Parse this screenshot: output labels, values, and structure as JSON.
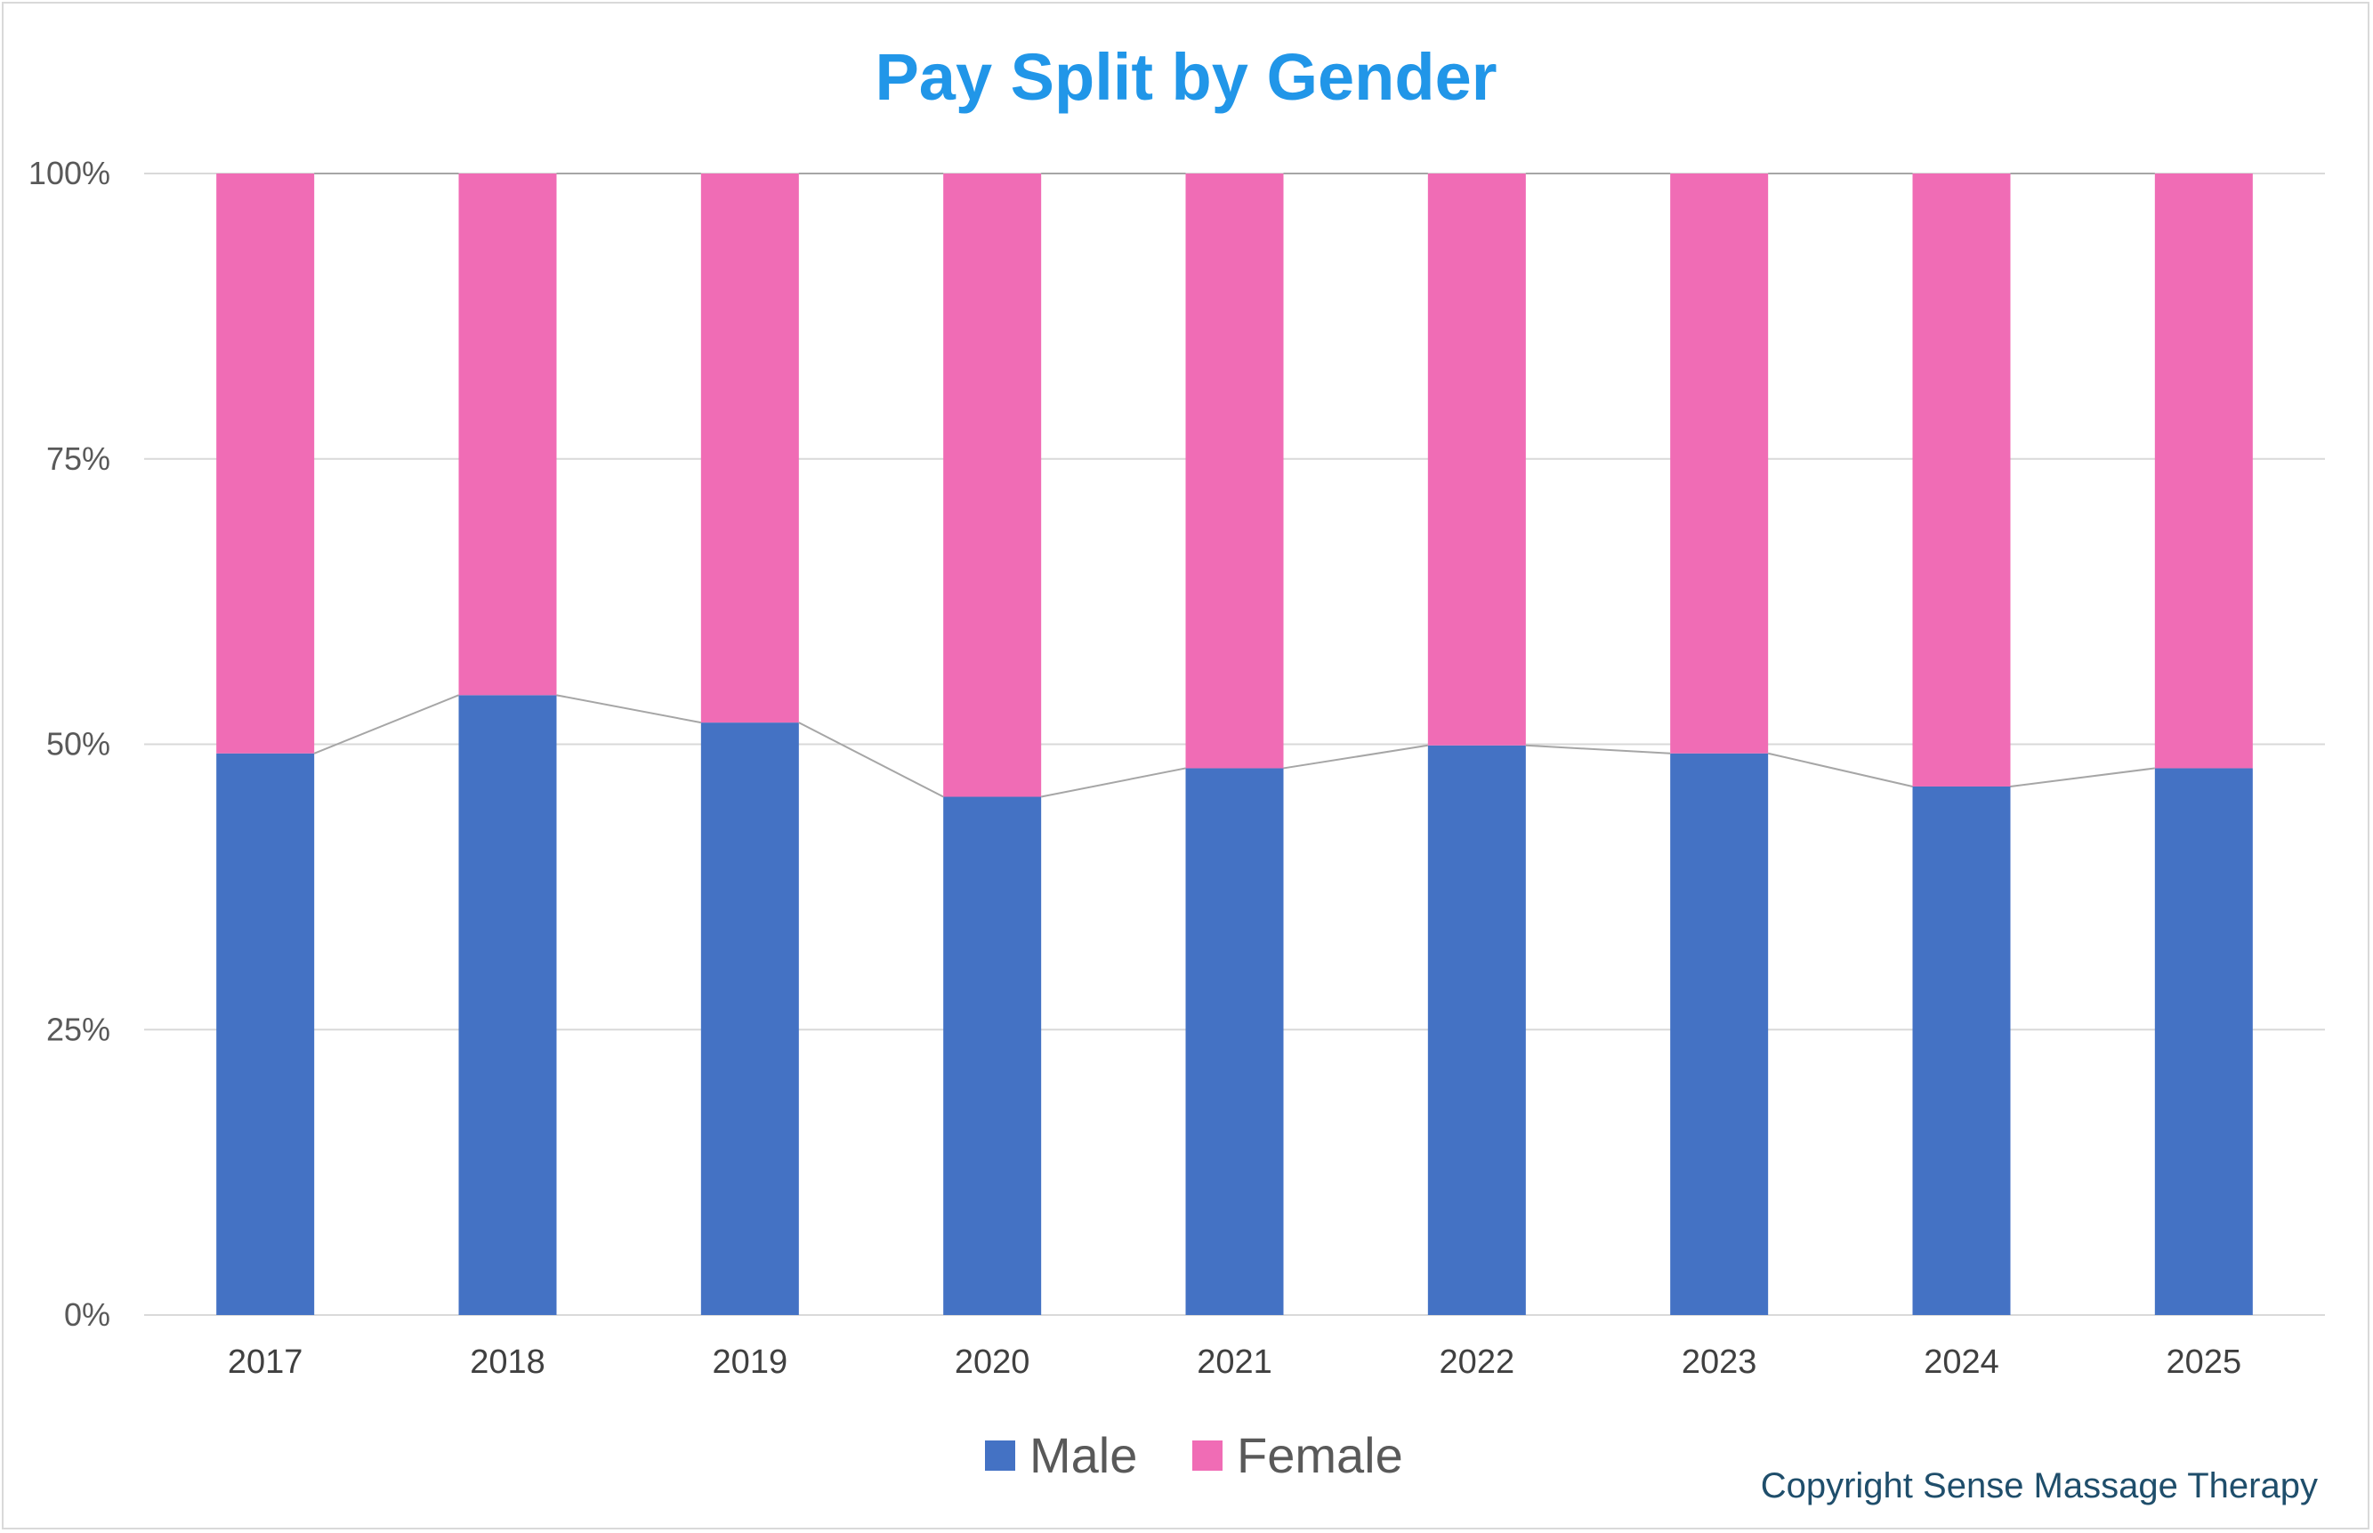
{
  "chart_data": {
    "type": "bar",
    "stacked": true,
    "normalized_percent": true,
    "title": "Pay Split by Gender",
    "categories": [
      "2017",
      "2018",
      "2019",
      "2020",
      "2021",
      "2022",
      "2023",
      "2024",
      "2025"
    ],
    "series": [
      {
        "name": "Male",
        "color": "#4472c4",
        "values": [
          49.2,
          54.3,
          51.9,
          45.4,
          47.9,
          49.9,
          49.2,
          46.3,
          47.9
        ]
      },
      {
        "name": "Female",
        "color": "#f06cb5",
        "values": [
          50.8,
          45.7,
          48.1,
          54.6,
          52.1,
          50.1,
          50.8,
          53.7,
          52.1
        ]
      }
    ],
    "series_lines": true,
    "yticks": [
      "0%",
      "25%",
      "50%",
      "75%",
      "100%"
    ],
    "ylim": [
      0,
      100
    ],
    "xlabel": "",
    "ylabel": "",
    "grid": true,
    "legend_position": "bottom"
  },
  "colors": {
    "title": "#2196e8",
    "copyright": "#1f4e6b",
    "grid": "#d9d9d9",
    "series_line": "#a6a6a6"
  },
  "copyright": "Copyright Sense Massage Therapy"
}
